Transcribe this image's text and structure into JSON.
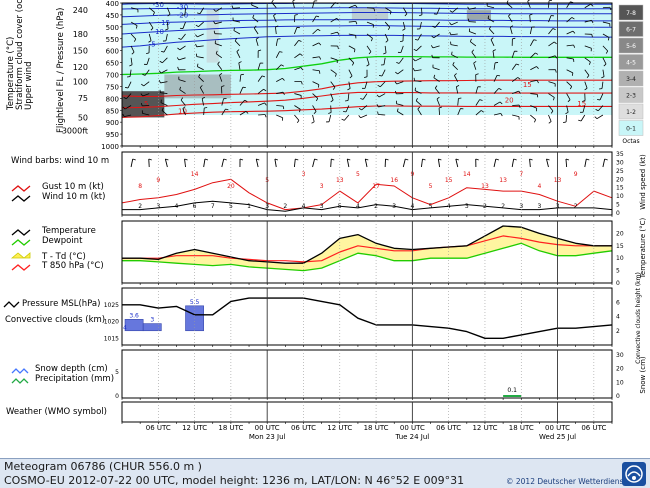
{
  "footer": {
    "line1": "Meteogram 06786 (CHUR  556.0 m )",
    "line2": "COSMO-EU 2012-07-22  00 UTC, model height: 1236 m,  LAT/LON: N 46°52 E 009°31",
    "copyright": "© 2012 Deutscher Wetterdienst"
  },
  "time_axis": {
    "ticks": [
      "06 UTC",
      "12 UTC",
      "18 UTC",
      "00 UTC",
      "06 UTC",
      "12 UTC",
      "18 UTC",
      "00 UTC",
      "06 UTC",
      "12 UTC",
      "18 UTC",
      "00 UTC",
      "06 UTC"
    ],
    "tick_hours": [
      6,
      12,
      18,
      24,
      30,
      36,
      42,
      48,
      54,
      60,
      66,
      72,
      78
    ],
    "day_labels": [
      "Mon 23 Jul",
      "Tue 24 Jul",
      "Wed 25 Jul"
    ],
    "day_hours": [
      24,
      48,
      72
    ],
    "range_hours": [
      0,
      81
    ]
  },
  "chart_data": [
    {
      "type": "heatmap",
      "ylabel_left": "Temperature (°C)\nStratiform cloud cover (octa)\nUpper wind",
      "ylabel_right_primary": "Flightlevel FL / Pressure (hPa)",
      "pressure_levels": [
        400,
        450,
        500,
        550,
        600,
        650,
        700,
        750,
        800,
        850,
        900,
        950,
        1000
      ],
      "flight_levels": [
        "240",
        "180",
        "150",
        "120",
        "100",
        "75",
        "50",
        "3000ft"
      ],
      "cloud_scale_labels": [
        "7-8",
        "6-7",
        "5-6",
        "4-5",
        "3-4",
        "2-3",
        "1-2",
        "0-1"
      ],
      "cloud_scale_title": "Octas",
      "isotherm_labels": [
        {
          "text": "-30",
          "hour": 6,
          "p": 405
        },
        {
          "text": "-30",
          "hour": 10,
          "p": 415
        },
        {
          "text": "-20",
          "hour": 10,
          "p": 448
        },
        {
          "text": "-15",
          "hour": 7,
          "p": 480
        },
        {
          "text": "-10",
          "hour": 6,
          "p": 518
        },
        {
          "text": "-5",
          "hour": 5,
          "p": 570
        },
        {
          "text": "5",
          "hour": 4,
          "p": 820
        },
        {
          "text": "10",
          "hour": 10,
          "p": 850
        },
        {
          "text": "15",
          "hour": 67,
          "p": 740
        },
        {
          "text": "20",
          "hour": 64,
          "p": 805
        },
        {
          "text": "15",
          "hour": 76,
          "p": 820
        }
      ]
    },
    {
      "type": "line",
      "title": "Wind barbs: wind 10 m",
      "series": [
        {
          "name": "Gust 10 m (kt)",
          "color": "#e01010",
          "x": [
            0,
            3,
            6,
            9,
            12,
            15,
            18,
            21,
            24,
            27,
            30,
            33,
            36,
            39,
            42,
            45,
            48,
            51,
            54,
            57,
            60,
            63,
            66,
            69,
            72,
            75,
            78,
            81
          ],
          "values": [
            6,
            8,
            9,
            11,
            14,
            18,
            20,
            12,
            6,
            2,
            3,
            5,
            13,
            6,
            17,
            16,
            9,
            5,
            9,
            15,
            14,
            13,
            13,
            11,
            7,
            4,
            13,
            9
          ]
        },
        {
          "name": "Wind 10 m (kt)",
          "color": "#000000",
          "x": [
            0,
            3,
            6,
            9,
            12,
            15,
            18,
            21,
            24,
            27,
            30,
            33,
            36,
            39,
            42,
            45,
            48,
            51,
            54,
            57,
            60,
            63,
            66,
            69,
            72,
            75,
            78,
            81
          ],
          "values": [
            2,
            2,
            3,
            4,
            6,
            7,
            6,
            5,
            2,
            1,
            3,
            2,
            4,
            3,
            5,
            4,
            2,
            3,
            4,
            5,
            4,
            3,
            2,
            2,
            3,
            3,
            3,
            2
          ]
        }
      ],
      "gust_labels": [
        "8",
        "9",
        "14",
        "20",
        "5",
        "3",
        "3",
        "13",
        "5",
        "17",
        "16",
        "9",
        "5",
        "15",
        "14",
        "13",
        "13",
        "7",
        "4",
        "13",
        "9"
      ],
      "wind_labels": [
        "2",
        "3",
        "4",
        "6",
        "7",
        "5",
        "1",
        "3",
        "2",
        "4",
        "3",
        "5",
        "4",
        "2",
        "3",
        "4",
        "5",
        "4",
        "3",
        "2",
        "2",
        "3",
        "3",
        "3",
        "2"
      ],
      "ylabel": "Wind speed (kt)",
      "ylim": [
        0,
        35
      ],
      "yticks": [
        0,
        5,
        10,
        15,
        20,
        25,
        30,
        35
      ]
    },
    {
      "type": "line",
      "series": [
        {
          "name": "Temperature",
          "color": "#000000",
          "x": [
            0,
            3,
            6,
            9,
            12,
            15,
            18,
            21,
            24,
            27,
            30,
            33,
            36,
            39,
            42,
            45,
            48,
            51,
            54,
            57,
            60,
            63,
            66,
            69,
            72,
            75,
            78,
            81
          ],
          "values": [
            10,
            10,
            9.5,
            12,
            13.5,
            12,
            10.5,
            9,
            8.5,
            8,
            8,
            12,
            18,
            19.5,
            16,
            14,
            13.5,
            14,
            14.5,
            15,
            19,
            23,
            22.5,
            20,
            18,
            16,
            15,
            15
          ]
        },
        {
          "name": "Dewpoint",
          "color": "#22cc00",
          "x": [
            0,
            3,
            6,
            9,
            12,
            15,
            18,
            21,
            24,
            27,
            30,
            33,
            36,
            39,
            42,
            45,
            48,
            51,
            54,
            57,
            60,
            63,
            66,
            69,
            72,
            75,
            78,
            81
          ],
          "values": [
            9,
            9,
            8.5,
            8,
            7.5,
            7,
            7.5,
            6.5,
            6,
            5.5,
            5,
            6,
            9,
            12,
            11,
            9,
            9,
            10,
            10,
            10,
            12,
            14,
            16,
            13,
            11,
            11,
            12,
            13
          ]
        },
        {
          "name": "T - Td (°C)",
          "color": "#ffee55"
        },
        {
          "name": "T 850 hPa (°C)",
          "color": "#ff2020",
          "x": [
            0,
            3,
            6,
            9,
            12,
            15,
            18,
            21,
            24,
            27,
            30,
            33,
            36,
            39,
            42,
            45,
            48,
            51,
            54,
            57,
            60,
            63,
            66,
            69,
            72,
            75,
            78,
            81
          ],
          "values": [
            10,
            10,
            10,
            11,
            11,
            11,
            10,
            9.5,
            9,
            9,
            8.5,
            9,
            12.5,
            15,
            14,
            13,
            13,
            14,
            14.5,
            15,
            17,
            19,
            18,
            16.5,
            15.5,
            15,
            15,
            15
          ]
        }
      ],
      "ylabel": "Temperature (°C)",
      "ylim": [
        0,
        25
      ],
      "yticks": [
        0,
        5,
        10,
        15,
        20
      ]
    },
    {
      "type": "line",
      "series": [
        {
          "name": "Pressure MSL(hPa)",
          "color": "#000000",
          "x": [
            0,
            3,
            6,
            9,
            12,
            15,
            18,
            21,
            24,
            27,
            30,
            33,
            36,
            39,
            42,
            45,
            48,
            51,
            54,
            57,
            60,
            63,
            66,
            69,
            72,
            75,
            78,
            81
          ],
          "values": [
            1025,
            1025,
            1024,
            1024.5,
            1022,
            1022,
            1026,
            1027,
            1027,
            1027,
            1027,
            1026,
            1025,
            1021,
            1019,
            1019,
            1019,
            1018.5,
            1018,
            1017,
            1015,
            1015,
            1016,
            1017,
            1018,
            1018,
            1018.5,
            1019
          ]
        },
        {
          "name": "Convective clouds (km)",
          "color": "#6677dd"
        }
      ],
      "convective_bars": [
        {
          "start": 0.5,
          "end": 3.5,
          "value": 3.6,
          "label": "3.6"
        },
        {
          "start": 3.5,
          "end": 6.5,
          "value": 3.0,
          "label": "3"
        },
        {
          "start": 10.5,
          "end": 13.5,
          "value": 5.5,
          "label": "5.5"
        }
      ],
      "ylabel_left_ticks": [
        1015,
        1020,
        1025
      ],
      "ylabel_right": "Convective clouds height (km)",
      "yticks_right": [
        2,
        4,
        6
      ],
      "extra_label": "4"
    },
    {
      "type": "bar",
      "series": [
        {
          "name": "Snow depth (cm)",
          "color": "#4477ff"
        },
        {
          "name": "Precipitation (mm)",
          "color": "#22aa44",
          "x": [
            64.5
          ],
          "values": [
            0.1
          ]
        }
      ],
      "precip_label": "0.1",
      "ylabel_right": "Snow (cm)",
      "yticks_left": [
        0,
        5
      ],
      "yticks_right": [
        0,
        10,
        20,
        30
      ]
    },
    {
      "type": "table",
      "title": "Weather (WMO symbol)"
    }
  ]
}
